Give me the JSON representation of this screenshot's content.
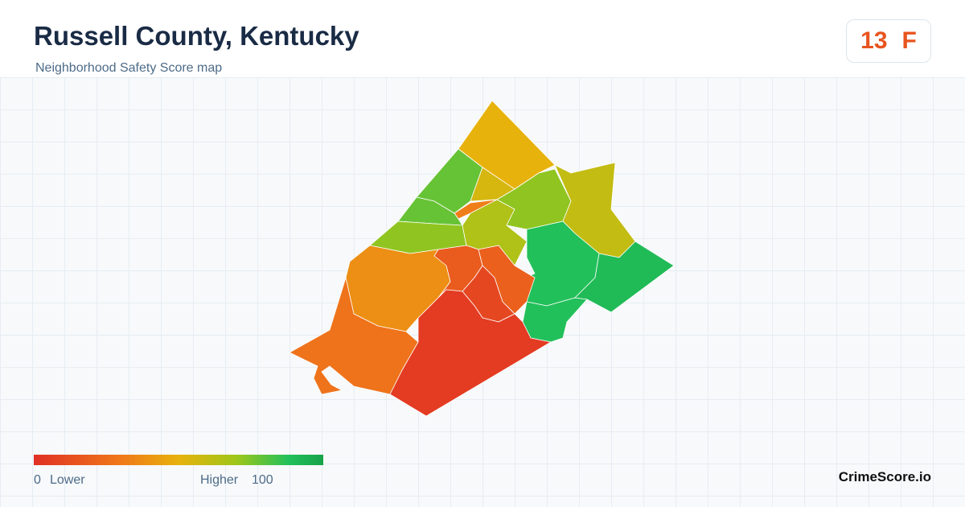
{
  "header": {
    "title": "Russell County, Kentucky",
    "subtitle": "Neighborhood Safety Score map"
  },
  "score": {
    "value": 13,
    "grade": "F"
  },
  "map": {
    "region_scores": [
      50,
      78,
      55,
      32,
      78,
      72,
      65,
      72,
      60,
      88,
      90,
      88,
      38,
      28,
      18,
      20,
      10,
      5
    ]
  },
  "legend": {
    "min": 0,
    "min_label": "Lower",
    "max_label": "Higher",
    "max": 100
  },
  "brand": "CrimeScore.io"
}
